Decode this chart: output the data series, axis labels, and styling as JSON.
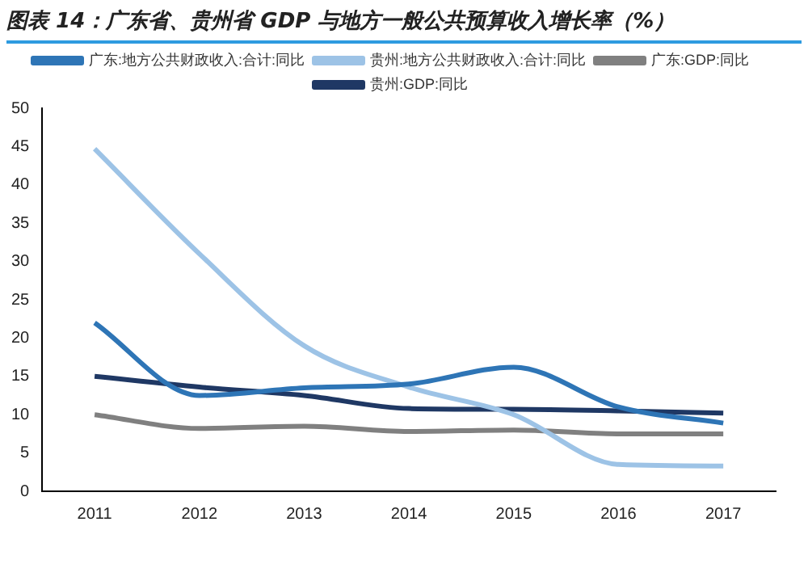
{
  "chart_data": {
    "type": "line",
    "title": "图表 14：广东省、贵州省 GDP 与地方一般公共预算收入增长率（%）",
    "categories": [
      "2011",
      "2012",
      "2013",
      "2014",
      "2015",
      "2016",
      "2017"
    ],
    "series": [
      {
        "name": "广东:地方公共财政收入:合计:同比",
        "color": "#2e75b6",
        "values": [
          22,
          12.5,
          13.5,
          14,
          16.2,
          11,
          8.9
        ]
      },
      {
        "name": "贵州:地方公共财政收入:合计:同比",
        "color": "#9dc3e6",
        "values": [
          44.7,
          31,
          19,
          13.6,
          10,
          3.5,
          3.3
        ]
      },
      {
        "name": "广东:GDP:同比",
        "color": "#808080",
        "values": [
          10,
          8.2,
          8.5,
          7.8,
          8,
          7.5,
          7.5
        ]
      },
      {
        "name": "贵州:GDP:同比",
        "color": "#1f3864",
        "values": [
          15,
          13.6,
          12.5,
          10.8,
          10.7,
          10.5,
          10.2
        ]
      }
    ],
    "ylim": [
      0,
      50
    ],
    "yticks": [
      0,
      5,
      10,
      15,
      20,
      25,
      30,
      35,
      40,
      45,
      50
    ],
    "grid": false,
    "legend": "top",
    "marker": "none",
    "line_style": "solid"
  }
}
